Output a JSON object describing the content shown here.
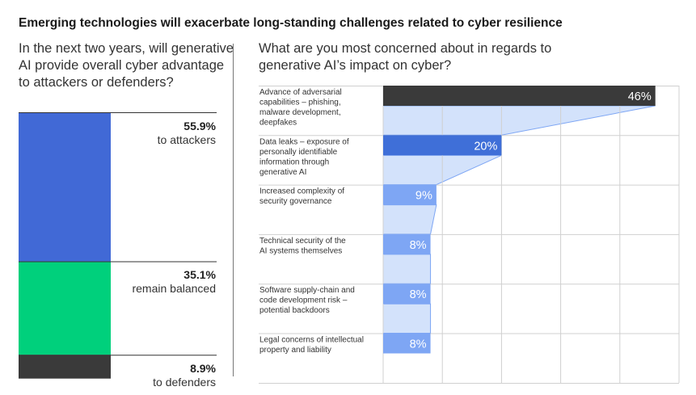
{
  "title": "Emerging technologies will exacerbate long-standing challenges related to cyber resilience",
  "left_question": "In the next two years, will generative AI provide overall cyber advantage to attackers or defenders?",
  "right_question": "What are you most concerned about in regards to generative AI’s impact on cyber?",
  "chart_data": [
    {
      "type": "bar",
      "stacked": true,
      "title": "In the next two years, will generative AI provide overall cyber advantage to attackers or defenders?",
      "series": [
        {
          "label": "to attackers",
          "value": 55.9,
          "display": "55.9%",
          "color": "#4169d6"
        },
        {
          "label": "remain balanced",
          "value": 35.1,
          "display": "35.1%",
          "color": "#00d07c"
        },
        {
          "label": "to defenders",
          "value": 8.9,
          "display": "8.9%",
          "color": "#3a3a3a"
        }
      ]
    },
    {
      "type": "bar",
      "orientation": "horizontal",
      "title": "What are you most concerned about in regards to generative AI’s impact on cyber?",
      "xlim": [
        0,
        50
      ],
      "grid": true,
      "categories": [
        [
          "Advance of adversarial",
          "capabilities – phishing,",
          "malware development,",
          "deepfakes"
        ],
        [
          "Data leaks – exposure of",
          "personally identifiable",
          "information through",
          "generative AI"
        ],
        [
          "Increased complexity of",
          "security governance"
        ],
        [
          "Technical security of the",
          "AI systems themselves"
        ],
        [
          "Software supply-chain and",
          "code development risk –",
          "potential backdoors"
        ],
        [
          "Legal concerns of intellectual",
          "property and liability"
        ]
      ],
      "values": [
        46,
        20,
        9,
        8,
        8,
        8
      ],
      "labels": [
        "46%",
        "20%",
        "9%",
        "8%",
        "8%",
        "8%"
      ],
      "bar_colors": [
        "#3a3a3a",
        "#3f6fd8",
        "#7ea6f4",
        "#7ea6f4",
        "#7ea6f4",
        "#7ea6f4"
      ],
      "funnel_color": "#d3e2fb"
    }
  ]
}
